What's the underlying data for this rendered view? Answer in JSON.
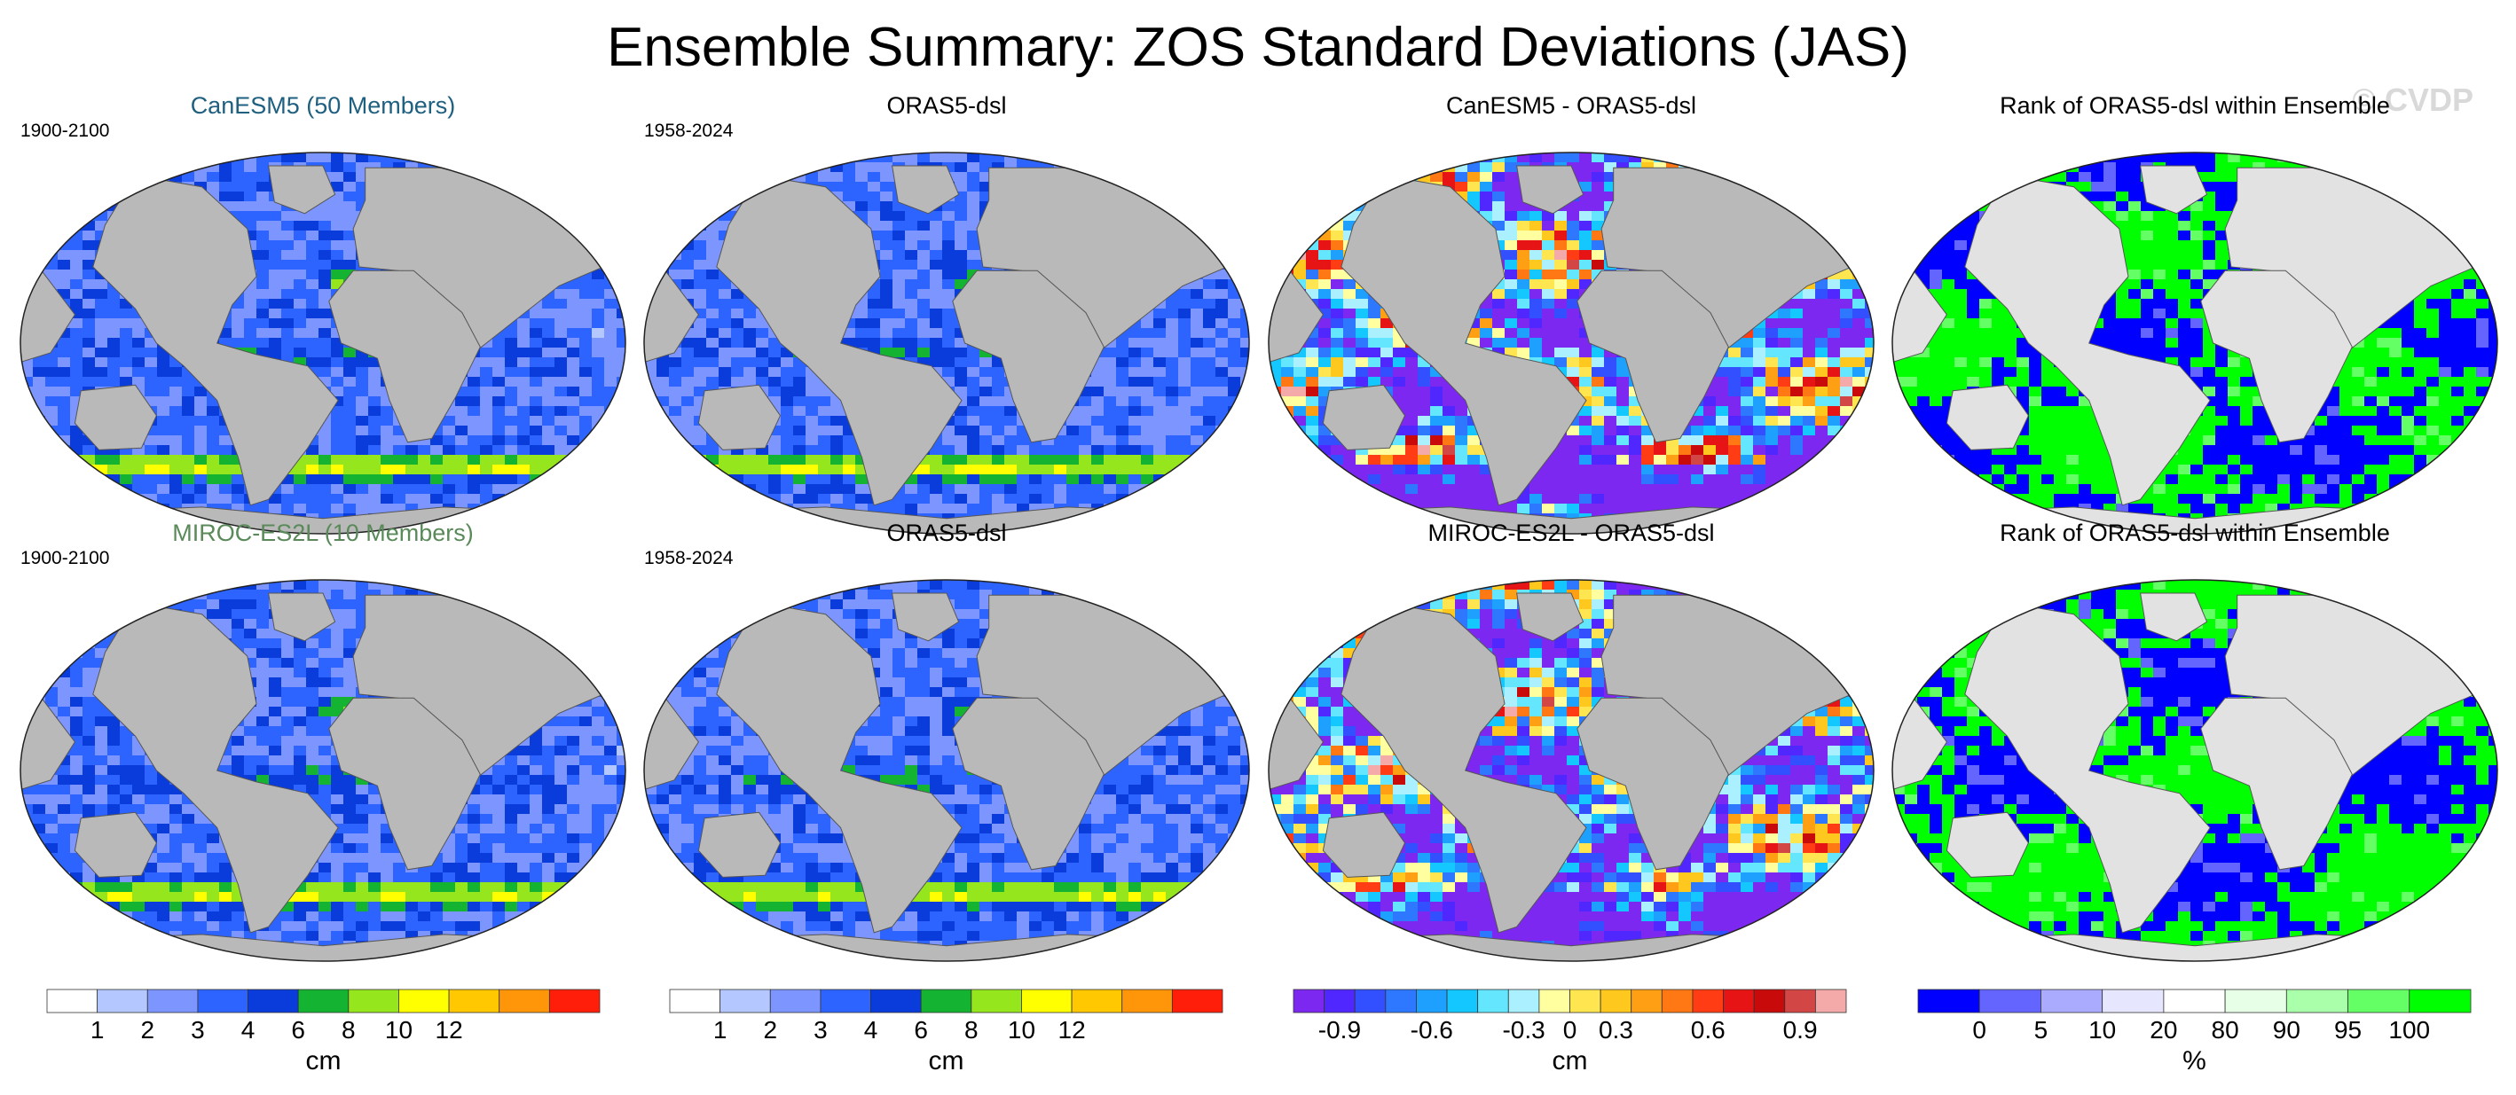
{
  "title": "Ensemble Summary: ZOS Standard Deviations (JAS)",
  "watermark": "© CVDP",
  "colors": {
    "land": "#b9b9b9",
    "land_light": "#e2e2e2",
    "sd_scale": [
      "#ffffff",
      "#b4c8ff",
      "#7d96ff",
      "#2d64ff",
      "#0a3cdc",
      "#14b432",
      "#96e61e",
      "#ffff00",
      "#ffc800",
      "#ff960a",
      "#ff1e0a"
    ],
    "diff_scale": [
      "#7d28f0",
      "#5028ff",
      "#3250ff",
      "#2d78ff",
      "#1ea0ff",
      "#14c8ff",
      "#64e6ff",
      "#aaf0ff",
      "#ffffa0",
      "#ffe650",
      "#ffc81e",
      "#ffa014",
      "#ff7814",
      "#ff3c14",
      "#e61414",
      "#c80a0a",
      "#d24646",
      "#f5aaaa"
    ],
    "rank_scale": [
      "#0000ff",
      "#6464ff",
      "#aaaaff",
      "#e6e6ff",
      "#ffffff",
      "#e6ffe6",
      "#aaffaa",
      "#64ff64",
      "#00ff00"
    ]
  },
  "panels": [
    {
      "title": "CanESM5 (50 Members)",
      "title_color": "#1f6080",
      "period": "1900-2100",
      "kind": "sd",
      "map_name": "canesm5-sd-map"
    },
    {
      "title": "ORAS5-dsl",
      "title_color": "#000000",
      "period": "1958-2024",
      "kind": "sd",
      "map_name": "oras5-sd-map-top"
    },
    {
      "title": "CanESM5 - ORAS5-dsl",
      "title_color": "#000000",
      "period": "",
      "kind": "diff",
      "map_name": "canesm5-minus-oras5-map"
    },
    {
      "title": "Rank of ORAS5-dsl within Ensemble",
      "title_color": "#000000",
      "period": "",
      "kind": "rank",
      "map_name": "rank-canesm5-map"
    },
    {
      "title": "MIROC-ES2L (10 Members)",
      "title_color": "#5a8a5a",
      "period": "1900-2100",
      "kind": "sd",
      "map_name": "miroc-es2l-sd-map"
    },
    {
      "title": "ORAS5-dsl",
      "title_color": "#000000",
      "period": "1958-2024",
      "kind": "sd",
      "map_name": "oras5-sd-map-bottom"
    },
    {
      "title": "MIROC-ES2L - ORAS5-dsl",
      "title_color": "#000000",
      "period": "",
      "kind": "diff",
      "map_name": "miroc-minus-oras5-map"
    },
    {
      "title": "Rank of ORAS5-dsl within Ensemble",
      "title_color": "#000000",
      "period": "",
      "kind": "rank",
      "map_name": "rank-miroc-map"
    }
  ],
  "chart_data": [
    {
      "type": "heatmap",
      "title": "CanESM5 (50 Members)",
      "subtitle": "1900-2100",
      "projection": "robinson",
      "variable": "ZOS standard deviation",
      "units": "cm",
      "levels": [
        1,
        2,
        3,
        4,
        6,
        8,
        10,
        12
      ]
    },
    {
      "type": "heatmap",
      "title": "ORAS5-dsl",
      "subtitle": "1958-2024",
      "projection": "robinson",
      "variable": "ZOS standard deviation",
      "units": "cm",
      "levels": [
        1,
        2,
        3,
        4,
        6,
        8,
        10,
        12
      ]
    },
    {
      "type": "heatmap",
      "title": "CanESM5 - ORAS5-dsl",
      "projection": "robinson",
      "units": "cm",
      "levels": [
        -0.9,
        -0.6,
        -0.3,
        0,
        0.3,
        0.6,
        0.9
      ]
    },
    {
      "type": "heatmap",
      "title": "Rank of ORAS5-dsl within Ensemble",
      "projection": "robinson",
      "units": "%",
      "levels": [
        0,
        5,
        10,
        20,
        80,
        90,
        95,
        100
      ]
    },
    {
      "type": "heatmap",
      "title": "MIROC-ES2L (10 Members)",
      "subtitle": "1900-2100",
      "projection": "robinson",
      "variable": "ZOS standard deviation",
      "units": "cm",
      "levels": [
        1,
        2,
        3,
        4,
        6,
        8,
        10,
        12
      ]
    },
    {
      "type": "heatmap",
      "title": "ORAS5-dsl",
      "subtitle": "1958-2024",
      "projection": "robinson",
      "variable": "ZOS standard deviation",
      "units": "cm",
      "levels": [
        1,
        2,
        3,
        4,
        6,
        8,
        10,
        12
      ]
    },
    {
      "type": "heatmap",
      "title": "MIROC-ES2L - ORAS5-dsl",
      "projection": "robinson",
      "units": "cm",
      "levels": [
        -0.9,
        -0.6,
        -0.3,
        0,
        0.3,
        0.6,
        0.9
      ]
    },
    {
      "type": "heatmap",
      "title": "Rank of ORAS5-dsl within Ensemble",
      "projection": "robinson",
      "units": "%",
      "levels": [
        0,
        5,
        10,
        20,
        80,
        90,
        95,
        100
      ]
    }
  ],
  "colorbars": [
    {
      "name": "sd-colorbar-1",
      "kind": "sd",
      "ticks": [
        "1",
        "2",
        "3",
        "4",
        "6",
        "8",
        "10",
        "12"
      ],
      "unit": "cm"
    },
    {
      "name": "sd-colorbar-2",
      "kind": "sd",
      "ticks": [
        "1",
        "2",
        "3",
        "4",
        "6",
        "8",
        "10",
        "12"
      ],
      "unit": "cm"
    },
    {
      "name": "diff-colorbar",
      "kind": "diff",
      "ticks": [
        "-0.9",
        "-0.6",
        "-0.3",
        "0",
        "0.3",
        "0.6",
        "0.9"
      ],
      "unit": "cm"
    },
    {
      "name": "rank-colorbar",
      "kind": "rank",
      "ticks": [
        "0",
        "5",
        "10",
        "20",
        "80",
        "90",
        "95",
        "100"
      ],
      "unit": "%"
    }
  ]
}
